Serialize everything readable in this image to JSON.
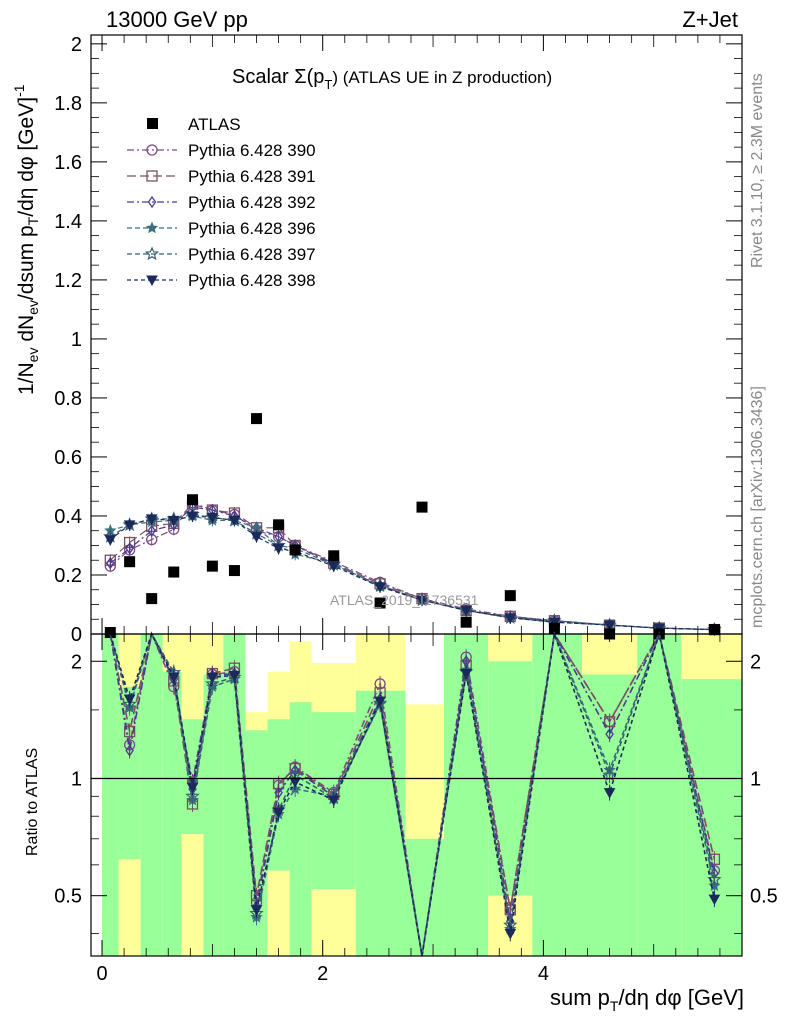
{
  "header": {
    "left": "13000 GeV pp",
    "right": "Z+Jet"
  },
  "chart_data": {
    "type": "scatter",
    "title_main": "Scalar Σ(p",
    "title_sub": "T",
    "title_tail": ") (ATLAS UE in Z production)",
    "watermark": "ATLAS_2019_I1736531",
    "side_right_top": "Rivet 3.1.10, ≥ 2.3M events",
    "side_right_bottom": "mcplots.cern.ch [arXiv:1306.3436]",
    "ylabel": "1/N_ev dN_ev/dsum p_T/dη dφ [GeV]^-1",
    "ylabel_parts": {
      "a": "1/N",
      "a_sub": "ev",
      "b": " dN",
      "b_sub": "ev",
      "c": "/dsum p",
      "c_sub": "T",
      "d": "/dη dφ  [GeV]",
      "d_sup": "-1"
    },
    "xlabel_parts": {
      "a": "sum p",
      "a_sub": "T",
      "b": "/dη dφ [GeV]"
    },
    "ratio_ylabel": "Ratio to ATLAS",
    "xlim": [
      -0.1,
      5.8
    ],
    "ylim": [
      0,
      2.03
    ],
    "ratio_ylim": [
      0.35,
      2.35
    ],
    "main_yticks": [
      "0",
      "0.2",
      "0.4",
      "0.6",
      "0.8",
      "1",
      "1.2",
      "1.4",
      "1.6",
      "1.8",
      "2"
    ],
    "ratio_yticks": [
      "0.5",
      "1",
      "2"
    ],
    "xticks": [
      "0",
      "2",
      "4"
    ],
    "x": [
      0.075,
      0.25,
      0.45,
      0.65,
      0.82,
      1.0,
      1.2,
      1.4,
      1.6,
      1.75,
      2.1,
      2.52,
      2.9,
      3.3,
      3.7,
      4.1,
      4.6,
      5.05,
      5.55
    ],
    "atlas": [
      0.005,
      0.245,
      0.12,
      0.21,
      0.455,
      0.23,
      0.215,
      0.73,
      0.37,
      0.285,
      0.265,
      0.105,
      0.43,
      0.04,
      0.13,
      0.02,
      0.0,
      0.0,
      0.015
    ],
    "series": [
      {
        "name": "Pythia 6.428 390",
        "color": "#7a4a8a",
        "dash": "7,3,2,3",
        "marker": "circle-open",
        "values": [
          0.23,
          0.285,
          0.32,
          0.355,
          0.445,
          0.42,
          0.405,
          0.35,
          0.33,
          0.3,
          0.245,
          0.175,
          0.12,
          0.085,
          0.06,
          0.045,
          0.03,
          0.02,
          0.015
        ]
      },
      {
        "name": "Pythia 6.428 391",
        "color": "#7a5060",
        "dash": "9,4",
        "marker": "square-open",
        "values": [
          0.25,
          0.31,
          0.365,
          0.375,
          0.44,
          0.42,
          0.41,
          0.36,
          0.36,
          0.3,
          0.24,
          0.17,
          0.12,
          0.08,
          0.06,
          0.045,
          0.03,
          0.02,
          0.015
        ]
      },
      {
        "name": "Pythia 6.428 392",
        "color": "#4a3a90",
        "dash": "7,3,2,3",
        "marker": "diamond-open",
        "values": [
          0.24,
          0.29,
          0.35,
          0.37,
          0.43,
          0.42,
          0.4,
          0.36,
          0.33,
          0.3,
          0.235,
          0.165,
          0.115,
          0.08,
          0.055,
          0.045,
          0.03,
          0.02,
          0.015
        ]
      },
      {
        "name": "Pythia 6.428 396",
        "color": "#3a7080",
        "dash": "5,3",
        "marker": "star-filled",
        "values": [
          0.35,
          0.37,
          0.38,
          0.385,
          0.4,
          0.385,
          0.385,
          0.36,
          0.3,
          0.27,
          0.24,
          0.16,
          0.115,
          0.08,
          0.055,
          0.04,
          0.03,
          0.02,
          0.015
        ]
      },
      {
        "name": "Pythia 6.428 397",
        "color": "#3a6070",
        "dash": "5,3",
        "marker": "star-open",
        "values": [
          0.33,
          0.37,
          0.39,
          0.39,
          0.405,
          0.395,
          0.385,
          0.34,
          0.3,
          0.29,
          0.235,
          0.165,
          0.115,
          0.08,
          0.055,
          0.045,
          0.03,
          0.02,
          0.015
        ]
      },
      {
        "name": "Pythia 6.428 398",
        "color": "#1a2a5a",
        "dash": "4,3",
        "marker": "triangle-down",
        "values": [
          0.32,
          0.37,
          0.39,
          0.385,
          0.4,
          0.395,
          0.385,
          0.33,
          0.29,
          0.28,
          0.23,
          0.16,
          0.115,
          0.08,
          0.055,
          0.04,
          0.03,
          0.02,
          0.015
        ]
      }
    ],
    "ratio_points": [
      [
        2.35,
        1.22,
        2.35,
        1.72,
        0.98,
        1.85,
        1.88,
        0.48,
        0.96,
        1.07,
        0.92,
        1.75,
        0.35,
        2.05,
        0.46,
        2.35,
        1.4,
        2.35,
        0.58
      ],
      [
        2.35,
        1.32,
        2.35,
        1.78,
        0.86,
        1.86,
        1.92,
        0.5,
        0.97,
        1.06,
        0.91,
        1.66,
        0.35,
        1.95,
        0.46,
        2.35,
        1.4,
        2.35,
        0.62
      ],
      [
        2.35,
        1.18,
        2.35,
        1.8,
        0.94,
        1.84,
        1.86,
        0.47,
        0.92,
        1.05,
        0.9,
        1.6,
        0.35,
        2.0,
        0.43,
        2.35,
        1.3,
        2.35,
        0.57
      ],
      [
        2.35,
        1.52,
        2.35,
        1.85,
        0.88,
        1.72,
        1.8,
        0.44,
        0.81,
        0.94,
        0.9,
        1.55,
        0.35,
        1.9,
        0.41,
        2.35,
        1.05,
        2.35,
        0.53
      ],
      [
        2.35,
        1.55,
        2.35,
        1.87,
        0.9,
        1.75,
        1.82,
        0.45,
        0.83,
        1.02,
        0.89,
        1.56,
        0.35,
        1.88,
        0.42,
        2.35,
        1.02,
        2.35,
        0.55
      ],
      [
        2.35,
        1.6,
        2.35,
        1.82,
        0.95,
        1.82,
        1.84,
        0.46,
        0.82,
        0.98,
        0.88,
        1.58,
        0.35,
        1.86,
        0.4,
        2.35,
        0.92,
        2.35,
        0.49
      ]
    ],
    "bands": [
      {
        "x0": 0.0,
        "x1": 0.15,
        "green": [
          0.35,
          2.35
        ],
        "yellow": [
          0.35,
          2.35
        ]
      },
      {
        "x0": 0.15,
        "x1": 0.35,
        "green": [
          0.62,
          1.72
        ],
        "yellow": [
          0.35,
          2.35
        ]
      },
      {
        "x0": 0.35,
        "x1": 0.55,
        "green": [
          0.35,
          2.35
        ],
        "yellow": [
          0.35,
          2.35
        ]
      },
      {
        "x0": 0.55,
        "x1": 0.72,
        "green": [
          0.35,
          1.88
        ],
        "yellow": [
          0.35,
          2.35
        ]
      },
      {
        "x0": 0.72,
        "x1": 0.92,
        "green": [
          0.72,
          1.42
        ],
        "yellow": [
          0.35,
          2.35
        ]
      },
      {
        "x0": 0.92,
        "x1": 1.1,
        "green": [
          0.35,
          1.85
        ],
        "yellow": [
          0.35,
          2.35
        ]
      },
      {
        "x0": 1.1,
        "x1": 1.3,
        "green": [
          0.35,
          2.35
        ],
        "yellow": [
          0.35,
          2.35
        ]
      },
      {
        "x0": 1.3,
        "x1": 1.5,
        "green": [
          0.35,
          1.33
        ],
        "yellow": [
          0.35,
          1.48
        ]
      },
      {
        "x0": 1.5,
        "x1": 1.7,
        "green": [
          0.58,
          1.42
        ],
        "yellow": [
          0.35,
          1.88
        ]
      },
      {
        "x0": 1.7,
        "x1": 1.9,
        "green": [
          0.35,
          1.57
        ],
        "yellow": [
          0.35,
          2.25
        ]
      },
      {
        "x0": 1.9,
        "x1": 2.3,
        "green": [
          0.52,
          1.48
        ],
        "yellow": [
          0.35,
          1.98
        ]
      },
      {
        "x0": 2.3,
        "x1": 2.75,
        "green": [
          0.35,
          1.68
        ],
        "yellow": [
          0.35,
          2.35
        ]
      },
      {
        "x0": 2.75,
        "x1": 3.1,
        "green": [
          0.35,
          0.7
        ],
        "yellow": [
          0.35,
          1.55
        ]
      },
      {
        "x0": 3.1,
        "x1": 3.5,
        "green": [
          0.35,
          2.35
        ],
        "yellow": [
          0.35,
          2.35
        ]
      },
      {
        "x0": 3.5,
        "x1": 3.9,
        "green": [
          0.5,
          2.0
        ],
        "yellow": [
          0.35,
          2.35
        ]
      },
      {
        "x0": 3.9,
        "x1": 4.35,
        "green": [
          0.35,
          2.35
        ],
        "yellow": [
          0.35,
          2.35
        ]
      },
      {
        "x0": 4.35,
        "x1": 4.85,
        "green": [
          0.35,
          1.85
        ],
        "yellow": [
          0.35,
          2.35
        ]
      },
      {
        "x0": 4.85,
        "x1": 5.25,
        "green": [
          0.35,
          2.35
        ],
        "yellow": [
          0.35,
          2.35
        ]
      },
      {
        "x0": 5.25,
        "x1": 5.8,
        "green": [
          0.35,
          1.8
        ],
        "yellow": [
          0.35,
          2.35
        ]
      }
    ],
    "ratio_hole_first": [
      0.8,
      1.0
    ]
  }
}
